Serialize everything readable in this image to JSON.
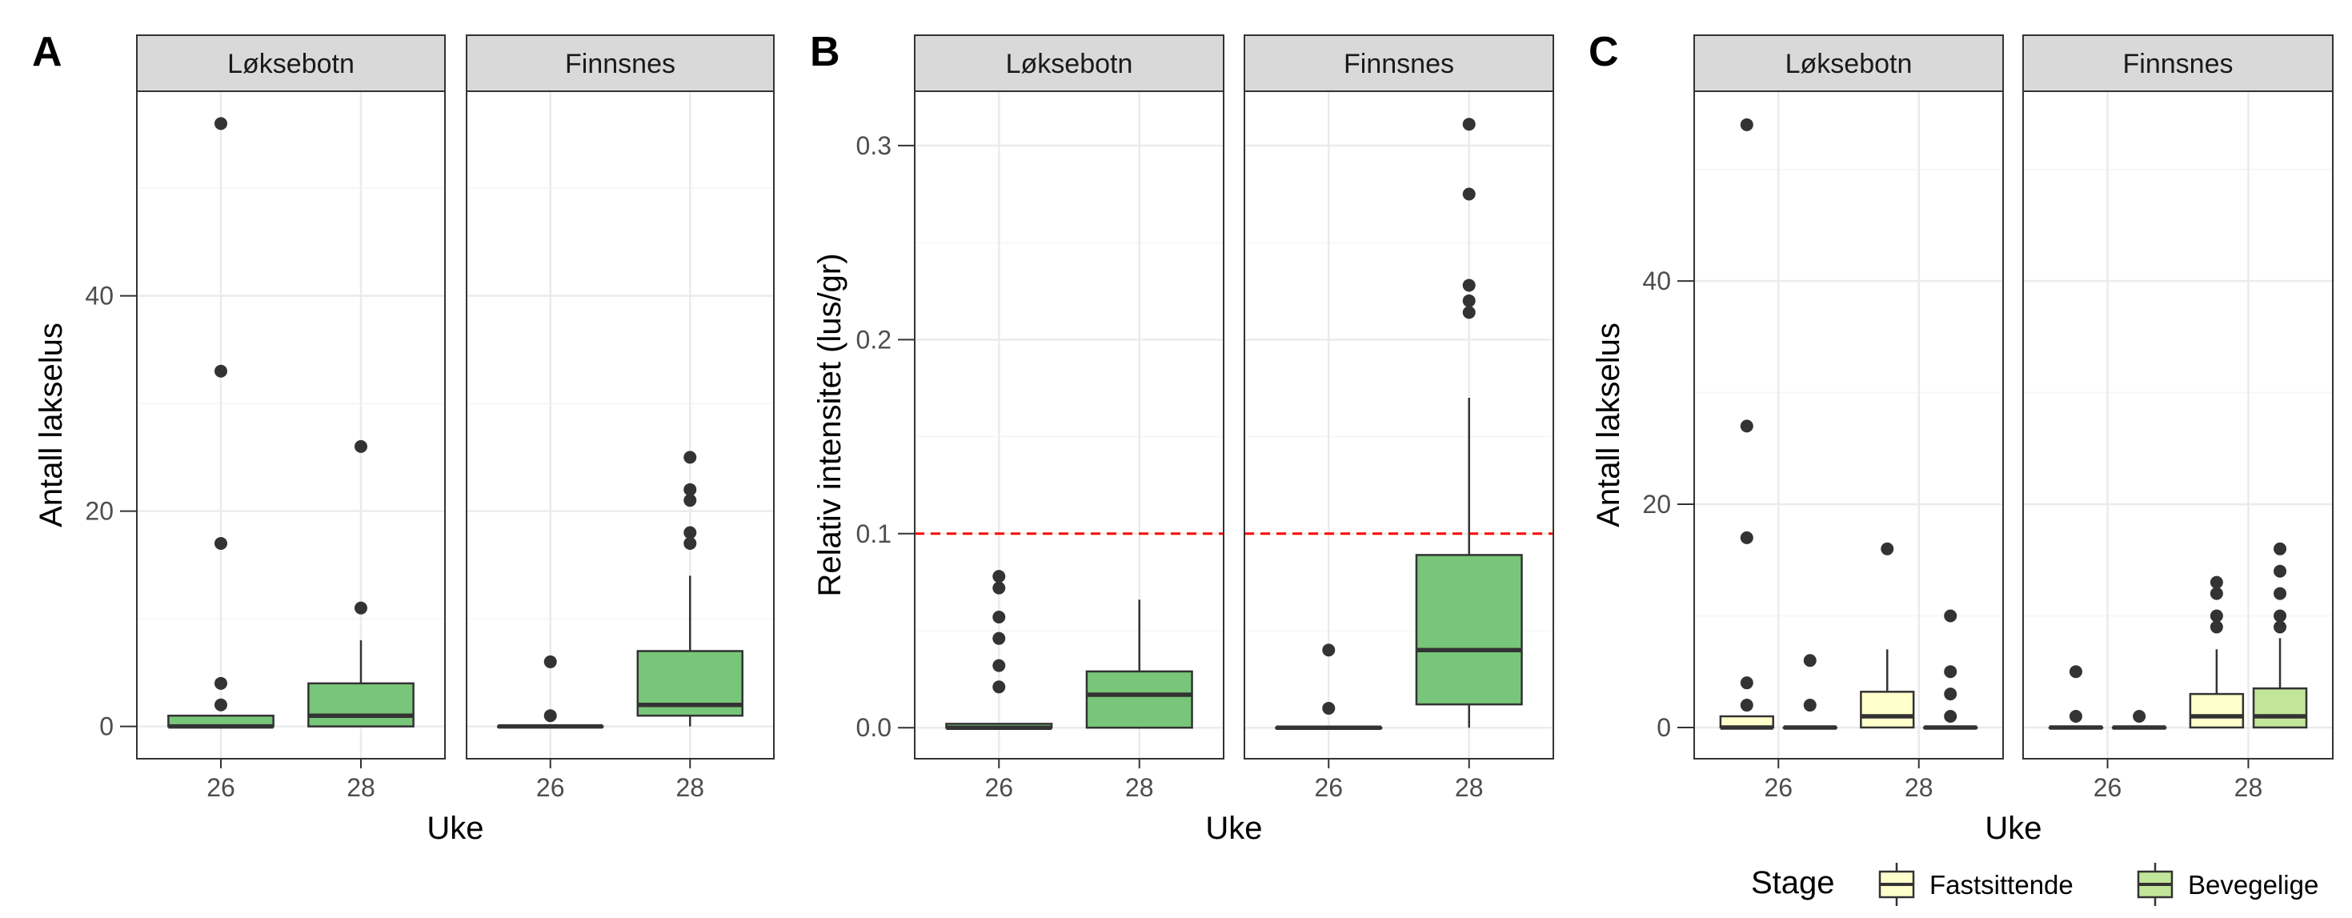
{
  "colors": {
    "fill_single": "#78C679",
    "fill_fastsittende": "#FFFFCC",
    "fill_bevegelige": "#C2E699",
    "strip_bg": "#D9D9D9",
    "grid_major": "#EBEBEB",
    "grid_minor": "#F5F5F5",
    "box_line": "#333333",
    "hline": "#FF0000"
  },
  "chart_data": [
    {
      "panel_label": "A",
      "type": "boxplot",
      "ylabel": "Antall lakselus",
      "xlabel": "Uke",
      "ylim": [
        -3,
        59
      ],
      "yticks": [
        0,
        20,
        40
      ],
      "yticks_labels": [
        "0",
        "20",
        "40"
      ],
      "categories": [
        "26",
        "28"
      ],
      "facets": [
        {
          "name": "Løksebotn",
          "boxes": [
            {
              "x": "26",
              "fill": "single",
              "q1": 0,
              "median": 0,
              "q3": 1,
              "lower": 0,
              "upper": 1,
              "outliers": [
                2,
                4,
                17,
                33,
                56
              ]
            },
            {
              "x": "28",
              "fill": "single",
              "q1": 0,
              "median": 1,
              "q3": 4,
              "lower": 0,
              "upper": 8,
              "outliers": [
                11,
                26
              ]
            }
          ]
        },
        {
          "name": "Finnsnes",
          "boxes": [
            {
              "x": "26",
              "fill": "single",
              "q1": 0,
              "median": 0,
              "q3": 0,
              "lower": 0,
              "upper": 0,
              "outliers": [
                1,
                6
              ]
            },
            {
              "x": "28",
              "fill": "single",
              "q1": 1,
              "median": 2,
              "q3": 7,
              "lower": 0,
              "upper": 14,
              "outliers": [
                17,
                18,
                21,
                22,
                25
              ]
            }
          ]
        }
      ]
    },
    {
      "panel_label": "B",
      "type": "boxplot",
      "ylabel": "Relativ intensitet (lus/gr)",
      "xlabel": "Uke",
      "ylim": [
        -0.016,
        0.328
      ],
      "yticks": [
        0,
        0.1,
        0.2,
        0.3
      ],
      "yticks_labels": [
        "0.0",
        "0.1",
        "0.2",
        "0.3"
      ],
      "categories": [
        "26",
        "28"
      ],
      "reference_line": 0.1,
      "facets": [
        {
          "name": "Løksebotn",
          "boxes": [
            {
              "x": "26",
              "fill": "single",
              "q1": 0,
              "median": 0,
              "q3": 0.002,
              "lower": 0,
              "upper": 0.002,
              "outliers": [
                0.021,
                0.032,
                0.046,
                0.057,
                0.072,
                0.078
              ]
            },
            {
              "x": "28",
              "fill": "single",
              "q1": 0,
              "median": 0.017,
              "q3": 0.029,
              "lower": 0,
              "upper": 0.066,
              "outliers": []
            }
          ]
        },
        {
          "name": "Finnsnes",
          "boxes": [
            {
              "x": "26",
              "fill": "single",
              "q1": 0,
              "median": 0,
              "q3": 0,
              "lower": 0,
              "upper": 0,
              "outliers": [
                0.01,
                0.04
              ]
            },
            {
              "x": "28",
              "fill": "single",
              "q1": 0.012,
              "median": 0.04,
              "q3": 0.089,
              "lower": 0,
              "upper": 0.17,
              "outliers": [
                0.214,
                0.22,
                0.228,
                0.275,
                0.311
              ]
            }
          ]
        }
      ]
    },
    {
      "panel_label": "C",
      "type": "boxplot",
      "ylabel": "Antall lakselus",
      "xlabel": "Uke",
      "ylim": [
        -2.8,
        57
      ],
      "yticks": [
        0,
        20,
        40
      ],
      "yticks_labels": [
        "0",
        "20",
        "40"
      ],
      "categories": [
        "26",
        "28"
      ],
      "legend": {
        "title": "Stage",
        "position": "bottom",
        "entries": [
          {
            "label": "Fastsittende",
            "fill": "fastsittende"
          },
          {
            "label": "Bevegelige",
            "fill": "bevegelige"
          }
        ]
      },
      "facets": [
        {
          "name": "Løksebotn",
          "boxes": [
            {
              "x": "26",
              "fill": "fastsittende",
              "q1": 0,
              "median": 0,
              "q3": 1,
              "lower": 0,
              "upper": 1,
              "outliers": [
                2,
                4,
                17,
                27,
                54
              ]
            },
            {
              "x": "26",
              "fill": "bevegelige",
              "q1": 0,
              "median": 0,
              "q3": 0,
              "lower": 0,
              "upper": 0,
              "outliers": [
                2,
                6
              ]
            },
            {
              "x": "28",
              "fill": "fastsittende",
              "q1": 0,
              "median": 1,
              "q3": 3.2,
              "lower": 0,
              "upper": 7,
              "outliers": [
                16
              ]
            },
            {
              "x": "28",
              "fill": "bevegelige",
              "q1": 0,
              "median": 0,
              "q3": 0,
              "lower": 0,
              "upper": 0,
              "outliers": [
                1,
                3,
                5,
                10
              ]
            }
          ]
        },
        {
          "name": "Finnsnes",
          "boxes": [
            {
              "x": "26",
              "fill": "fastsittende",
              "q1": 0,
              "median": 0,
              "q3": 0,
              "lower": 0,
              "upper": 0,
              "outliers": [
                1,
                5
              ]
            },
            {
              "x": "26",
              "fill": "bevegelige",
              "q1": 0,
              "median": 0,
              "q3": 0,
              "lower": 0,
              "upper": 0,
              "outliers": [
                1
              ]
            },
            {
              "x": "28",
              "fill": "fastsittende",
              "q1": 0,
              "median": 1,
              "q3": 3,
              "lower": 0,
              "upper": 7,
              "outliers": [
                9,
                10,
                12,
                13
              ]
            },
            {
              "x": "28",
              "fill": "bevegelige",
              "q1": 0,
              "median": 1,
              "q3": 3.5,
              "lower": 0,
              "upper": 8,
              "outliers": [
                9,
                10,
                12,
                14,
                16
              ]
            }
          ]
        }
      ]
    }
  ]
}
